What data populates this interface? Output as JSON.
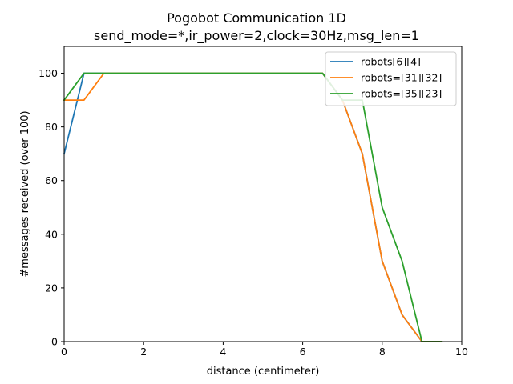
{
  "chart_data": {
    "type": "line",
    "title": "Pogobot Communication 1D",
    "subtitle": "send_mode=*,ir_power=2,clock=30Hz,msg_len=1",
    "xlabel": "distance (centimeter)",
    "ylabel": "#messages received (over 100)",
    "xlim": [
      0,
      10
    ],
    "ylim": [
      0,
      110
    ],
    "xticks": [
      0,
      2,
      4,
      6,
      8,
      10
    ],
    "yticks": [
      0,
      20,
      40,
      60,
      80,
      100
    ],
    "grid": false,
    "legend": "top-right",
    "series": [
      {
        "name": "robots[6][4]",
        "color": "#1f77b4",
        "x": [
          0,
          0.5,
          1,
          1.5,
          2,
          2.5,
          3,
          3.5,
          4,
          4.5,
          5,
          5.5,
          6,
          6.5,
          7,
          7.5,
          8,
          8.5,
          9,
          9.5
        ],
        "y": [
          70,
          100,
          100,
          100,
          100,
          100,
          100,
          100,
          100,
          100,
          100,
          100,
          100,
          100,
          90,
          70,
          30,
          10,
          0,
          0
        ]
      },
      {
        "name": "robots=[31][32]",
        "color": "#ff7f0e",
        "x": [
          0,
          0.5,
          1,
          1.5,
          2,
          2.5,
          3,
          3.5,
          4,
          4.5,
          5,
          5.5,
          6,
          6.5,
          7,
          7.5,
          8,
          8.5,
          9,
          9.5
        ],
        "y": [
          90,
          90,
          100,
          100,
          100,
          100,
          100,
          100,
          100,
          100,
          100,
          100,
          100,
          100,
          90,
          70,
          30,
          10,
          0,
          0
        ]
      },
      {
        "name": "robots=[35][23]",
        "color": "#2ca02c",
        "x": [
          0,
          0.5,
          1,
          1.5,
          2,
          2.5,
          3,
          3.5,
          4,
          4.5,
          5,
          5.5,
          6,
          6.5,
          7,
          7.5,
          8,
          8.5,
          9,
          9.5
        ],
        "y": [
          90,
          100,
          100,
          100,
          100,
          100,
          100,
          100,
          100,
          100,
          100,
          100,
          100,
          100,
          90,
          90,
          50,
          30,
          0,
          0
        ]
      }
    ]
  }
}
